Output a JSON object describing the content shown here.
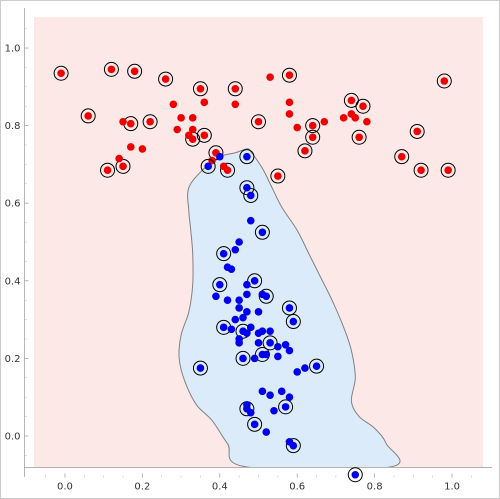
{
  "chart_data": {
    "type": "scatter",
    "title": "",
    "xlabel": "",
    "ylabel": "",
    "xlim": [
      -0.08,
      1.08
    ],
    "ylim": [
      -0.08,
      1.08
    ],
    "x_ticks": [
      0.0,
      0.2,
      0.4,
      0.6,
      0.8,
      1.0
    ],
    "y_ticks": [
      0.0,
      0.2,
      0.4,
      0.6,
      0.8,
      1.0
    ],
    "x_tick_labels": [
      "0.0",
      "0.2",
      "0.4",
      "0.6",
      "0.8",
      "1.0"
    ],
    "y_tick_labels": [
      "0.0",
      "0.2",
      "0.4",
      "0.6",
      "0.8",
      "1.0"
    ],
    "grid": false,
    "legend": "none",
    "region_outer_color": "#fde8e8",
    "region_inner_color": "#dcebfa",
    "region_border_color": "#808080",
    "decision_boundary": [
      [
        0.47,
        0.74
      ],
      [
        0.48,
        0.733
      ],
      [
        0.51,
        0.69
      ],
      [
        0.535,
        0.64
      ],
      [
        0.56,
        0.59
      ],
      [
        0.6,
        0.53
      ],
      [
        0.63,
        0.47
      ],
      [
        0.66,
        0.41
      ],
      [
        0.69,
        0.35
      ],
      [
        0.72,
        0.28
      ],
      [
        0.74,
        0.22
      ],
      [
        0.75,
        0.15
      ],
      [
        0.74,
        0.09
      ],
      [
        0.76,
        0.05
      ],
      [
        0.8,
        0.02
      ],
      [
        0.83,
        -0.02
      ],
      [
        0.84,
        -0.08
      ],
      [
        0.47,
        -0.08
      ],
      [
        0.42,
        -0.02
      ],
      [
        0.38,
        0.04
      ],
      [
        0.34,
        0.08
      ],
      [
        0.31,
        0.14
      ],
      [
        0.295,
        0.2
      ],
      [
        0.3,
        0.26
      ],
      [
        0.32,
        0.32
      ],
      [
        0.33,
        0.39
      ],
      [
        0.33,
        0.47
      ],
      [
        0.325,
        0.53
      ],
      [
        0.32,
        0.58
      ],
      [
        0.32,
        0.64
      ],
      [
        0.36,
        0.69
      ],
      [
        0.4,
        0.72
      ],
      [
        0.44,
        0.73
      ]
    ],
    "series": [
      {
        "color": "#ee0000",
        "points": [
          [
            -0.01,
            0.935
          ],
          [
            0.12,
            0.945
          ],
          [
            0.18,
            0.94
          ],
          [
            0.26,
            0.92
          ],
          [
            0.35,
            0.895
          ],
          [
            0.44,
            0.895
          ],
          [
            0.58,
            0.93
          ],
          [
            0.53,
            0.925
          ],
          [
            0.98,
            0.915
          ],
          [
            0.74,
            0.865
          ],
          [
            0.77,
            0.85
          ],
          [
            0.06,
            0.825
          ],
          [
            0.15,
            0.81
          ],
          [
            0.17,
            0.805
          ],
          [
            0.22,
            0.81
          ],
          [
            0.36,
            0.86
          ],
          [
            0.44,
            0.855
          ],
          [
            0.5,
            0.81
          ],
          [
            0.58,
            0.86
          ],
          [
            0.6,
            0.795
          ],
          [
            0.64,
            0.8
          ],
          [
            0.64,
            0.77
          ],
          [
            0.67,
            0.81
          ],
          [
            0.72,
            0.82
          ],
          [
            0.74,
            0.83
          ],
          [
            0.75,
            0.82
          ],
          [
            0.78,
            0.81
          ],
          [
            0.76,
            0.77
          ],
          [
            0.33,
            0.82
          ],
          [
            0.33,
            0.79
          ],
          [
            0.32,
            0.775
          ],
          [
            0.33,
            0.765
          ],
          [
            0.36,
            0.775
          ],
          [
            0.29,
            0.79
          ],
          [
            0.3,
            0.82
          ],
          [
            0.28,
            0.855
          ],
          [
            0.39,
            0.73
          ],
          [
            0.38,
            0.71
          ],
          [
            0.17,
            0.745
          ],
          [
            0.14,
            0.715
          ],
          [
            0.15,
            0.695
          ],
          [
            0.11,
            0.685
          ],
          [
            0.41,
            0.695
          ],
          [
            0.42,
            0.685
          ],
          [
            0.62,
            0.735
          ],
          [
            0.91,
            0.785
          ],
          [
            0.87,
            0.72
          ],
          [
            0.92,
            0.685
          ],
          [
            0.99,
            0.685
          ],
          [
            0.55,
            0.67
          ],
          [
            0.58,
            0.83
          ],
          [
            0.2,
            0.74
          ]
        ],
        "circled": [
          [
            -0.01,
            0.935
          ],
          [
            0.12,
            0.945
          ],
          [
            0.18,
            0.94
          ],
          [
            0.26,
            0.92
          ],
          [
            0.35,
            0.895
          ],
          [
            0.44,
            0.895
          ],
          [
            0.58,
            0.93
          ],
          [
            0.98,
            0.915
          ],
          [
            0.74,
            0.865
          ],
          [
            0.77,
            0.85
          ],
          [
            0.06,
            0.825
          ],
          [
            0.17,
            0.805
          ],
          [
            0.22,
            0.81
          ],
          [
            0.5,
            0.81
          ],
          [
            0.64,
            0.8
          ],
          [
            0.64,
            0.77
          ],
          [
            0.76,
            0.77
          ],
          [
            0.33,
            0.765
          ],
          [
            0.36,
            0.775
          ],
          [
            0.39,
            0.73
          ],
          [
            0.15,
            0.695
          ],
          [
            0.11,
            0.685
          ],
          [
            0.42,
            0.685
          ],
          [
            0.62,
            0.735
          ],
          [
            0.91,
            0.785
          ],
          [
            0.87,
            0.72
          ],
          [
            0.92,
            0.685
          ],
          [
            0.99,
            0.685
          ],
          [
            0.55,
            0.67
          ]
        ]
      },
      {
        "color": "#0000ee",
        "points": [
          [
            0.37,
            0.695
          ],
          [
            0.4,
            0.72
          ],
          [
            0.47,
            0.72
          ],
          [
            0.47,
            0.64
          ],
          [
            0.48,
            0.62
          ],
          [
            0.48,
            0.555
          ],
          [
            0.51,
            0.525
          ],
          [
            0.45,
            0.5
          ],
          [
            0.44,
            0.48
          ],
          [
            0.41,
            0.47
          ],
          [
            0.42,
            0.435
          ],
          [
            0.43,
            0.43
          ],
          [
            0.47,
            0.39
          ],
          [
            0.49,
            0.4
          ],
          [
            0.4,
            0.39
          ],
          [
            0.39,
            0.36
          ],
          [
            0.42,
            0.35
          ],
          [
            0.45,
            0.35
          ],
          [
            0.47,
            0.365
          ],
          [
            0.51,
            0.365
          ],
          [
            0.52,
            0.36
          ],
          [
            0.45,
            0.33
          ],
          [
            0.47,
            0.32
          ],
          [
            0.5,
            0.32
          ],
          [
            0.58,
            0.33
          ],
          [
            0.59,
            0.295
          ],
          [
            0.44,
            0.3
          ],
          [
            0.46,
            0.305
          ],
          [
            0.48,
            0.28
          ],
          [
            0.41,
            0.28
          ],
          [
            0.43,
            0.275
          ],
          [
            0.46,
            0.27
          ],
          [
            0.47,
            0.265
          ],
          [
            0.5,
            0.265
          ],
          [
            0.51,
            0.27
          ],
          [
            0.53,
            0.27
          ],
          [
            0.45,
            0.25
          ],
          [
            0.45,
            0.24
          ],
          [
            0.5,
            0.24
          ],
          [
            0.53,
            0.24
          ],
          [
            0.55,
            0.23
          ],
          [
            0.57,
            0.235
          ],
          [
            0.58,
            0.22
          ],
          [
            0.55,
            0.205
          ],
          [
            0.52,
            0.21
          ],
          [
            0.46,
            0.2
          ],
          [
            0.49,
            0.2
          ],
          [
            0.62,
            0.175
          ],
          [
            0.6,
            0.165
          ],
          [
            0.65,
            0.18
          ],
          [
            0.35,
            0.175
          ],
          [
            0.51,
            0.115
          ],
          [
            0.53,
            0.105
          ],
          [
            0.56,
            0.115
          ],
          [
            0.58,
            0.1
          ],
          [
            0.57,
            0.075
          ],
          [
            0.54,
            0.065
          ],
          [
            0.47,
            0.07
          ],
          [
            0.47,
            0.08
          ],
          [
            0.48,
            0.06
          ],
          [
            0.49,
            0.03
          ],
          [
            0.52,
            0.01
          ],
          [
            0.58,
            -0.015
          ],
          [
            0.59,
            -0.025
          ],
          [
            0.75,
            -0.1
          ],
          [
            0.51,
            0.21
          ]
        ],
        "circled": [
          [
            0.37,
            0.695
          ],
          [
            0.47,
            0.72
          ],
          [
            0.47,
            0.64
          ],
          [
            0.48,
            0.62
          ],
          [
            0.51,
            0.525
          ],
          [
            0.41,
            0.47
          ],
          [
            0.49,
            0.4
          ],
          [
            0.4,
            0.39
          ],
          [
            0.52,
            0.36
          ],
          [
            0.58,
            0.33
          ],
          [
            0.59,
            0.295
          ],
          [
            0.41,
            0.28
          ],
          [
            0.46,
            0.27
          ],
          [
            0.53,
            0.24
          ],
          [
            0.46,
            0.2
          ],
          [
            0.51,
            0.21
          ],
          [
            0.65,
            0.18
          ],
          [
            0.35,
            0.175
          ],
          [
            0.57,
            0.075
          ],
          [
            0.47,
            0.07
          ],
          [
            0.49,
            0.03
          ],
          [
            0.59,
            -0.025
          ],
          [
            0.75,
            -0.1
          ]
        ]
      }
    ]
  }
}
